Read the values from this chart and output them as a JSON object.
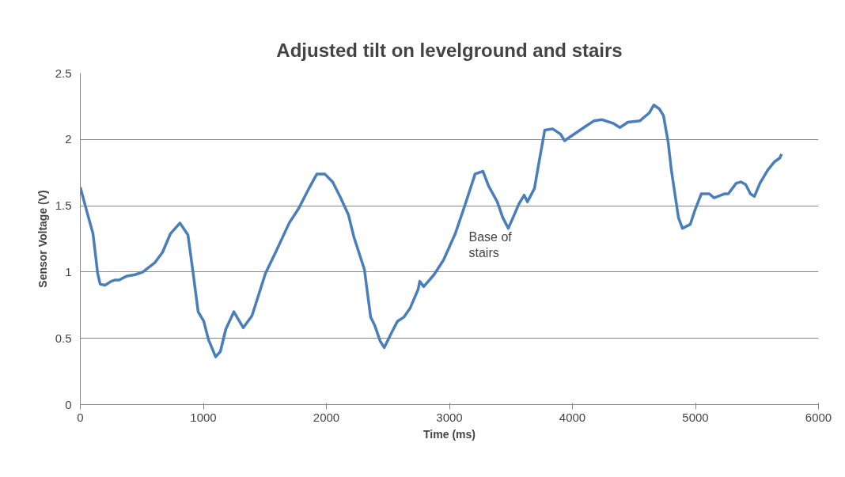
{
  "chart_data": {
    "type": "line",
    "title": "Adjusted tilt on levelground and stairs",
    "xlabel": "Time (ms)",
    "ylabel": "Sensor Voltage (V)",
    "x": [
      0,
      58,
      103,
      141,
      161,
      199,
      251,
      283,
      315,
      379,
      444,
      508,
      605,
      669,
      733,
      810,
      875,
      913,
      958,
      1003,
      1042,
      1100,
      1138,
      1183,
      1248,
      1325,
      1395,
      1447,
      1505,
      1588,
      1698,
      1775,
      1858,
      1923,
      1987,
      2051,
      2116,
      2180,
      2225,
      2309,
      2360,
      2392,
      2437,
      2470,
      2534,
      2579,
      2630,
      2682,
      2746,
      2759,
      2791,
      2875,
      2952,
      3048,
      3132,
      3209,
      3273,
      3318,
      3389,
      3434,
      3479,
      3531,
      3563,
      3608,
      3634,
      3691,
      3723,
      3775,
      3839,
      3904,
      3936,
      3981,
      4045,
      4109,
      4174,
      4238,
      4335,
      4386,
      4450,
      4547,
      4624,
      4662,
      4707,
      4740,
      4778,
      4804,
      4836,
      4862,
      4894,
      4958,
      4997,
      5048,
      5113,
      5151,
      5235,
      5267,
      5331,
      5370,
      5408,
      5447,
      5479,
      5524,
      5588,
      5640,
      5685,
      5700
    ],
    "series": [
      {
        "color": "#4a7ebb",
        "values": [
          1.64,
          1.44,
          1.29,
          0.99,
          0.91,
          0.9,
          0.93,
          0.94,
          0.94,
          0.97,
          0.98,
          1.0,
          1.07,
          1.15,
          1.29,
          1.37,
          1.28,
          1.02,
          0.7,
          0.63,
          0.49,
          0.36,
          0.4,
          0.57,
          0.7,
          0.58,
          0.67,
          0.82,
          0.99,
          1.15,
          1.37,
          1.48,
          1.63,
          1.74,
          1.74,
          1.68,
          1.56,
          1.43,
          1.26,
          1.02,
          0.66,
          0.6,
          0.48,
          0.43,
          0.55,
          0.63,
          0.66,
          0.73,
          0.87,
          0.93,
          0.89,
          0.98,
          1.09,
          1.29,
          1.52,
          1.74,
          1.76,
          1.65,
          1.53,
          1.41,
          1.33,
          1.44,
          1.51,
          1.58,
          1.53,
          1.63,
          1.8,
          2.07,
          2.08,
          2.04,
          1.99,
          2.02,
          2.06,
          2.1,
          2.14,
          2.15,
          2.12,
          2.09,
          2.13,
          2.14,
          2.2,
          2.26,
          2.23,
          2.18,
          1.98,
          1.77,
          1.57,
          1.41,
          1.33,
          1.36,
          1.47,
          1.59,
          1.59,
          1.56,
          1.59,
          1.59,
          1.67,
          1.68,
          1.66,
          1.59,
          1.57,
          1.67,
          1.77,
          1.83,
          1.86,
          1.89
        ]
      }
    ],
    "xlim": [
      0,
      6000
    ],
    "xticks": [
      0,
      1000,
      2000,
      3000,
      4000,
      5000,
      6000
    ],
    "ylim": [
      0,
      2.5
    ],
    "yticks": [
      0,
      {
        "value": 0.5,
        "label": "0.5"
      },
      1,
      {
        "value": 1.5,
        "label": "1.5"
      },
      2,
      {
        "value": 2.5,
        "label": "2.5"
      }
    ],
    "grid": "y",
    "marker": "none",
    "line_style": "solid",
    "annotations": [
      {
        "text": "Base of stairs",
        "x": 3479,
        "y": 1.33
      }
    ]
  }
}
